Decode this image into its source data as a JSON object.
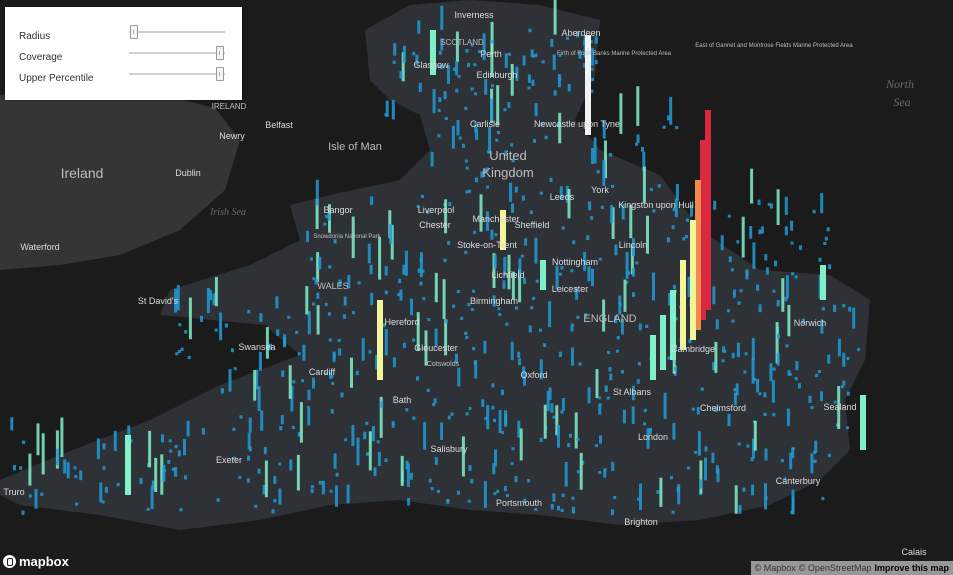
{
  "controls": [
    {
      "label": "Radius",
      "value": 0.05
    },
    {
      "label": "Coverage",
      "value": 0.95
    },
    {
      "label": "Upper Percentile",
      "value": 0.95
    }
  ],
  "map_labels": {
    "countries": [
      "Ireland",
      "United Kingdom",
      "ENGLAND",
      "WALES",
      "SCOTLAND",
      "IRELAND"
    ],
    "seas": [
      "North Sea",
      "Irish Sea"
    ],
    "islands": [
      "Isle of Man"
    ],
    "places": [
      "Inverness",
      "Perth",
      "Glasgow",
      "Edinburgh",
      "Aberdeen",
      "Carlisle",
      "Newcastle upon Tyne",
      "Belfast",
      "Newry",
      "Dublin",
      "Waterford",
      "Bangor",
      "Liverpool",
      "Chester",
      "Manchester",
      "Leeds",
      "York",
      "Kingston upon Hull",
      "Sheffield",
      "Stoke-on-Trent",
      "Lincoln",
      "Lichfield",
      "Nottingham",
      "Leicester",
      "Birmingham",
      "St David's",
      "Hereford",
      "Swansea",
      "Cardiff",
      "Gloucester",
      "Oxford",
      "Bath",
      "Cambridge",
      "St Albans",
      "Chelmsford",
      "London",
      "Norwich",
      "Sealand",
      "Exeter",
      "Salisbury",
      "Canterbury",
      "Portsmouth",
      "Brighton",
      "Truro",
      "Calais"
    ],
    "features": [
      "Firth of Forth Banks Marine Protected Area",
      "East of Gannet and Montrose Fields Marine Protected Area",
      "Snowdonia National Park",
      "Cotswolds"
    ]
  },
  "branding": {
    "logo": "mapbox"
  },
  "attribution": {
    "mapbox": "© Mapbox",
    "osm": "© OpenStreetMap",
    "improve": "Improve this map"
  },
  "colors": {
    "low": "#1f9bd7",
    "mid": "#7ff0c8",
    "high_mid": "#f3f59a",
    "peak": "#d9283f",
    "land": "#3a3a3a",
    "water": "#1b1b1b"
  }
}
